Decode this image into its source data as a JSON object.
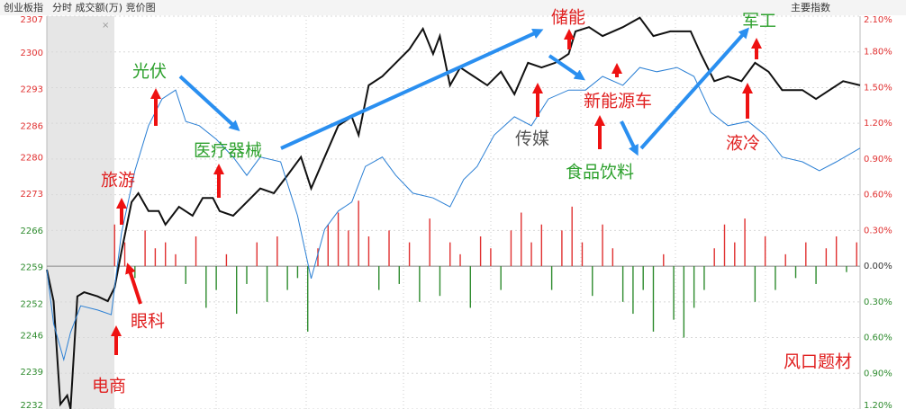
{
  "header": {
    "title": "创业板指",
    "mode": "分时 成交额(万) 竞价图",
    "button": "主要指数",
    "close": "×"
  },
  "chart_data": {
    "type": "line",
    "xlim": [
      0,
      240
    ],
    "ylim": [
      2232,
      2307
    ],
    "yticks": [
      2307,
      2300,
      2293,
      2286,
      2280,
      2273,
      2266,
      2259,
      2252,
      2246,
      2239,
      2232
    ],
    "y2lim": [
      -1.2,
      2.1
    ],
    "y2ticks": [
      {
        "value": 2.1,
        "label": "2.10%"
      },
      {
        "value": 1.8,
        "label": "1.80%"
      },
      {
        "value": 1.5,
        "label": "1.50%"
      },
      {
        "value": 1.2,
        "label": "1.20%"
      },
      {
        "value": 0.9,
        "label": "0.90%"
      },
      {
        "value": 0.6,
        "label": "0.60%"
      },
      {
        "value": 0.3,
        "label": "0.30%"
      },
      {
        "value": 0,
        "label": "0.00%"
      },
      {
        "value": -0.3,
        "label": "0.30%"
      },
      {
        "value": -0.6,
        "label": "0.60%"
      },
      {
        "value": -0.9,
        "label": "0.90%"
      },
      {
        "value": -1.2,
        "label": "1.20%"
      }
    ],
    "grid": true,
    "series": [
      {
        "color": "#111111",
        "x": [
          0,
          2,
          4,
          6,
          7,
          9,
          11,
          15,
          18,
          20,
          22,
          25,
          27,
          30,
          33,
          35,
          39,
          43,
          46,
          49,
          51,
          55,
          59,
          63,
          67,
          71,
          75,
          78,
          82,
          86,
          90,
          92,
          95,
          99,
          103,
          107,
          111,
          114,
          116,
          119,
          122,
          126,
          130,
          134,
          138,
          142,
          146,
          150,
          154,
          156,
          160,
          164,
          170,
          175,
          179,
          184,
          190,
          193,
          197,
          201,
          205,
          209,
          213,
          217,
          223,
          227,
          231,
          235,
          240
        ],
        "values": [
          2258.6,
          2252.6,
          2232.9,
          2234.6,
          2232.0,
          2253.5,
          2254.3,
          2253.5,
          2252.6,
          2255.2,
          2262.0,
          2271.5,
          2273.2,
          2269.8,
          2269.8,
          2267.2,
          2270.6,
          2268.9,
          2272.3,
          2272.3,
          2269.8,
          2268.9,
          2271.5,
          2274.1,
          2273.2,
          2276.6,
          2280.1,
          2274.1,
          2280.1,
          2286.1,
          2287.8,
          2284.3,
          2293.8,
          2295.5,
          2298.1,
          2300.7,
          2304.6,
          2299.8,
          2303.2,
          2293.8,
          2297.2,
          2295.5,
          2293.8,
          2296.4,
          2292.1,
          2298.1,
          2297.2,
          2298.1,
          2299.8,
          2304.1,
          2304.9,
          2303.2,
          2304.9,
          2306.7,
          2303.2,
          2304.1,
          2304.1,
          2299.8,
          2294.6,
          2295.5,
          2294.6,
          2298.1,
          2296.4,
          2292.9,
          2292.9,
          2291.2,
          2292.9,
          2294.6,
          2293.8
        ]
      },
      {
        "color": "#2a7fd4",
        "x": [
          0,
          2,
          5,
          7,
          10,
          15,
          19,
          22,
          26,
          30,
          34,
          38,
          41,
          45,
          50,
          55,
          59,
          63,
          69,
          74,
          78,
          82,
          86,
          90,
          94,
          99,
          103,
          108,
          114,
          119,
          123,
          127,
          132,
          138,
          143,
          148,
          154,
          159,
          164,
          170,
          175,
          180,
          186,
          191,
          196,
          201,
          207,
          212,
          217,
          223,
          228,
          233,
          240
        ],
        "values": [
          2258.6,
          2248.3,
          2241.4,
          2246.6,
          2251.7,
          2250.9,
          2250.0,
          2265.5,
          2277.5,
          2286.1,
          2291.2,
          2292.9,
          2286.9,
          2286.1,
          2283.5,
          2280.1,
          2276.6,
          2280.1,
          2279.2,
          2268.9,
          2256.9,
          2266.3,
          2269.8,
          2271.5,
          2278.3,
          2280.1,
          2276.6,
          2273.2,
          2272.3,
          2270.6,
          2275.8,
          2278.3,
          2284.3,
          2287.8,
          2286.1,
          2291.2,
          2292.9,
          2292.9,
          2295.5,
          2293.8,
          2297.2,
          2296.4,
          2297.2,
          2295.5,
          2288.6,
          2286.1,
          2286.9,
          2284.3,
          2280.1,
          2279.2,
          2277.5,
          2279.2,
          2281.8
        ]
      }
    ],
    "volume": {
      "axis": "y2",
      "up_color": "#e03030",
      "down_color": "#2e8b2e",
      "x": [
        20,
        23,
        26,
        29,
        32,
        35,
        38,
        41,
        44,
        47,
        50,
        53,
        56,
        59,
        62,
        65,
        68,
        71,
        74,
        77,
        80,
        83,
        86,
        89,
        92,
        95,
        98,
        101,
        104,
        107,
        110,
        113,
        116,
        119,
        122,
        125,
        128,
        131,
        134,
        137,
        140,
        143,
        146,
        149,
        152,
        155,
        158,
        161,
        164,
        167,
        170,
        173,
        176,
        179,
        182,
        185,
        188,
        191,
        194,
        197,
        200,
        203,
        206,
        209,
        212,
        215,
        218,
        221,
        224,
        227,
        230,
        233,
        236,
        239
      ],
      "values": [
        0.35,
        0.2,
        -0.1,
        0.3,
        0.15,
        0.2,
        0.1,
        -0.15,
        0.25,
        -0.35,
        -0.2,
        0.1,
        -0.4,
        -0.15,
        0.2,
        -0.3,
        0.25,
        -0.2,
        -0.1,
        -0.55,
        0.15,
        0.35,
        0.45,
        0.3,
        0.55,
        0.25,
        -0.2,
        0.3,
        -0.15,
        0.2,
        -0.3,
        0.4,
        -0.25,
        0.2,
        0.1,
        -0.35,
        0.25,
        0.15,
        -0.2,
        0.3,
        0.45,
        0.2,
        0.35,
        -0.2,
        0.3,
        0.5,
        0.2,
        -0.25,
        0.35,
        0.15,
        -0.3,
        -0.4,
        -0.2,
        -0.55,
        0.1,
        -0.45,
        -0.6,
        -0.35,
        -0.2,
        0.15,
        0.35,
        0.2,
        0.4,
        -0.3,
        0.25,
        -0.2,
        0.1,
        -0.1,
        0.2,
        -0.15,
        0.15,
        0.25,
        -0.05,
        0.2
      ]
    },
    "annotations": [
      {
        "text": "光伏",
        "color": "#2ca02c"
      },
      {
        "text": "医疗器械",
        "color": "#2ca02c"
      },
      {
        "text": "旅游",
        "color": "#e02020"
      },
      {
        "text": "眼科",
        "color": "#e02020"
      },
      {
        "text": "电商",
        "color": "#e02020"
      },
      {
        "text": "储能",
        "color": "#e02020"
      },
      {
        "text": "新能源车",
        "color": "#e02020"
      },
      {
        "text": "传媒",
        "color": "#555555"
      },
      {
        "text": "食品饮料",
        "color": "#2ca02c"
      },
      {
        "text": "军工",
        "color": "#2ca02c"
      },
      {
        "text": "液冷",
        "color": "#e02020"
      },
      {
        "text": "风口题材",
        "color": "#e02020"
      }
    ]
  }
}
